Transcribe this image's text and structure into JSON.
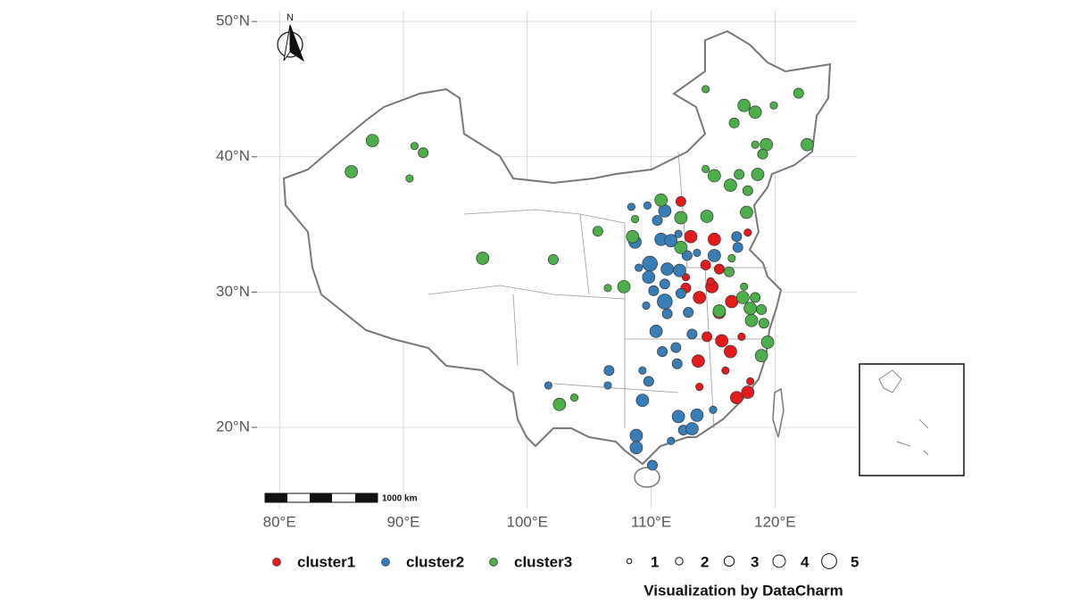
{
  "chart_data": {
    "type": "scatter",
    "north_label": "N",
    "scale_bar_label": "1000 km",
    "caption": "Visualization by DataCharm",
    "xlim": [
      73,
      126.6
    ],
    "ylim": [
      14,
      50.8
    ],
    "xticks": [
      {
        "value": 80,
        "label": "80°E"
      },
      {
        "value": 90,
        "label": "90°E"
      },
      {
        "value": 100,
        "label": "100°E"
      },
      {
        "value": 110,
        "label": "110°E"
      },
      {
        "value": 120,
        "label": "120°E"
      }
    ],
    "yticks": [
      {
        "value": 20,
        "label": "20°N"
      },
      {
        "value": 30,
        "label": "30°N"
      },
      {
        "value": 40,
        "label": "40°N"
      },
      {
        "value": 50,
        "label": "50°N"
      }
    ],
    "grid": true,
    "size_legend": [
      1,
      2,
      3,
      4,
      5
    ],
    "series": [
      {
        "name": "cluster1",
        "color": "#e41a1c",
        "x": [
          112.4,
          113.2,
          115.1,
          114.4,
          115.5,
          114.9,
          112.8,
          113.9,
          116.5,
          115.5,
          115.7,
          114.5,
          116.4,
          113.8,
          117.3,
          117.8,
          117.8,
          116.9,
          113.9,
          118.0,
          116.0,
          112.8,
          114.8
        ],
        "y": [
          36.7,
          34.1,
          33.9,
          32.0,
          31.7,
          30.4,
          30.3,
          29.6,
          29.3,
          28.5,
          26.4,
          26.7,
          25.6,
          24.9,
          26.7,
          34.4,
          22.6,
          22.2,
          23.0,
          23.4,
          24.2,
          31.1,
          30.8
        ],
        "sizes": [
          3,
          4,
          4,
          3,
          3,
          4,
          3,
          4,
          4,
          4,
          4,
          3,
          4,
          4,
          2,
          2,
          4,
          4,
          2,
          2,
          2,
          2,
          2
        ]
      },
      {
        "name": "cluster2",
        "color": "#377eb8",
        "x": [
          108.4,
          111.1,
          110.5,
          108.7,
          110.8,
          111.6,
          109.9,
          111.3,
          112.3,
          112.9,
          113.7,
          115.1,
          116.9,
          117.0,
          109.8,
          111.1,
          112.4,
          110.2,
          111.1,
          113.0,
          111.3,
          109.6,
          110.4,
          112.0,
          110.9,
          112.1,
          113.3,
          106.6,
          109.3,
          109.8,
          106.5,
          109.3,
          101.7,
          112.2,
          113.7,
          112.6,
          113.3,
          111.6,
          108.8,
          108.8,
          110.1,
          115.0,
          112.2,
          109.7,
          109.0
        ],
        "y": [
          36.3,
          36.0,
          35.3,
          33.7,
          33.9,
          33.8,
          32.1,
          31.7,
          31.6,
          32.7,
          32.9,
          32.7,
          34.1,
          33.3,
          31.1,
          30.6,
          29.9,
          30.1,
          29.3,
          28.5,
          28.4,
          29.0,
          27.1,
          25.9,
          25.6,
          24.7,
          26.9,
          24.2,
          24.2,
          23.4,
          23.1,
          22.0,
          23.1,
          20.8,
          20.9,
          19.8,
          19.9,
          19.0,
          19.4,
          18.5,
          17.2,
          21.3,
          34.3,
          36.4,
          31.8
        ],
        "sizes": [
          2,
          4,
          3,
          4,
          4,
          4,
          5,
          4,
          4,
          3,
          2,
          4,
          3,
          3,
          4,
          3,
          3,
          3,
          5,
          3,
          3,
          2,
          4,
          3,
          3,
          3,
          3,
          3,
          2,
          3,
          2,
          4,
          2,
          4,
          4,
          3,
          4,
          2,
          4,
          4,
          3,
          2,
          2,
          2,
          2
        ]
      },
      {
        "name": "cluster3",
        "color": "#4daf4a",
        "x": [
          114.4,
          117.5,
          118.4,
          116.7,
          119.9,
          121.9,
          119.3,
          122.6,
          118.4,
          119.0,
          115.1,
          117.1,
          116.4,
          118.6,
          117.8,
          117.7,
          110.8,
          112.4,
          114.5,
          116.5,
          116.3,
          117.5,
          117.4,
          118.4,
          118.0,
          118.9,
          118.1,
          119.1,
          119.4,
          118.9,
          115.5,
          112.4,
          108.5,
          105.7,
          107.8,
          106.5,
          102.1,
          96.4,
          87.5,
          85.8,
          90.9,
          91.6,
          90.5,
          102.6,
          103.8,
          108.7,
          114.4
        ],
        "y": [
          45.0,
          43.8,
          43.3,
          42.5,
          43.8,
          44.7,
          40.9,
          40.9,
          40.9,
          40.2,
          38.6,
          38.7,
          37.9,
          38.7,
          37.5,
          35.9,
          36.8,
          35.5,
          35.6,
          32.5,
          31.5,
          30.4,
          29.6,
          29.6,
          28.8,
          28.7,
          27.9,
          27.7,
          26.3,
          25.3,
          28.6,
          33.3,
          34.1,
          34.5,
          30.4,
          30.3,
          32.4,
          32.5,
          41.2,
          38.9,
          40.8,
          40.3,
          38.4,
          21.7,
          22.2,
          35.4,
          39.1
        ],
        "sizes": [
          2,
          4,
          4,
          3,
          2,
          3,
          4,
          4,
          2,
          3,
          4,
          3,
          4,
          4,
          3,
          4,
          4,
          4,
          4,
          2,
          3,
          2,
          4,
          3,
          4,
          3,
          4,
          3,
          4,
          4,
          4,
          4,
          4,
          3,
          4,
          2,
          3,
          4,
          4,
          4,
          2,
          3,
          2,
          4,
          2,
          2,
          2
        ]
      }
    ]
  }
}
